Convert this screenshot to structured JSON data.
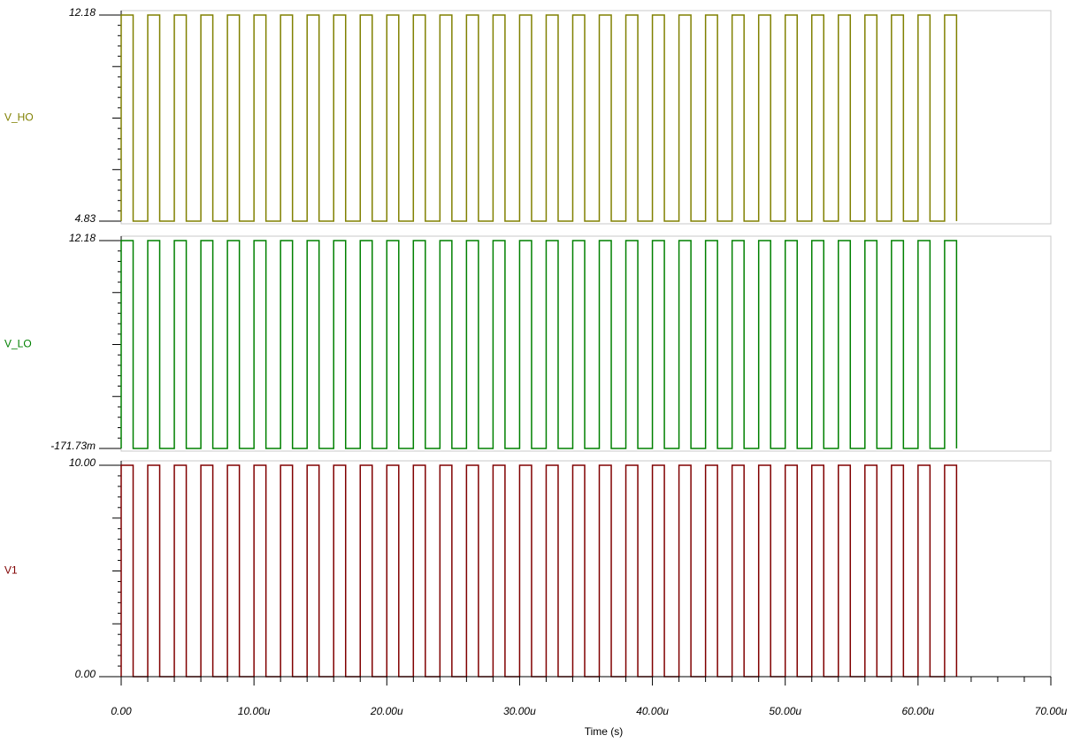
{
  "chart_data": [
    {
      "type": "line",
      "xlim": [
        0,
        7e-05
      ],
      "ylim": [
        4.83,
        12.18
      ],
      "yticks": [
        4.83,
        12.18
      ],
      "x": [
        0,
        0,
        9e-07,
        9e-07,
        2e-06,
        2e-06,
        2.9e-06,
        2.9e-06,
        4e-06,
        4e-06,
        4.9e-06,
        4.9e-06,
        6e-06,
        6e-06,
        6.9e-06,
        6.9e-06,
        8e-06,
        8e-06,
        8.9e-06,
        8.9e-06,
        1e-05,
        1e-05,
        1.09e-05,
        1.09e-05,
        1.2e-05,
        1.2e-05,
        1.29e-05,
        1.29e-05,
        1.4e-05,
        1.4e-05,
        1.49e-05,
        1.49e-05,
        1.6e-05,
        1.6e-05,
        1.69e-05,
        1.69e-05,
        1.8e-05,
        1.8e-05,
        1.89e-05,
        1.89e-05,
        2e-05,
        2e-05,
        2.09e-05,
        2.09e-05,
        2.2e-05,
        2.2e-05,
        2.29e-05,
        2.29e-05,
        2.4e-05,
        2.4e-05,
        2.49e-05,
        2.49e-05,
        2.6e-05,
        2.6e-05,
        2.69e-05,
        2.69e-05,
        2.8e-05,
        2.8e-05,
        2.89e-05,
        2.89e-05,
        3e-05,
        3e-05,
        3.09e-05,
        3.09e-05,
        3.2e-05,
        3.2e-05,
        3.29e-05,
        3.29e-05,
        3.4e-05,
        3.4e-05,
        3.49e-05,
        3.49e-05,
        3.6e-05,
        3.6e-05,
        3.69e-05,
        3.69e-05,
        3.8e-05,
        3.8e-05,
        3.89e-05,
        3.89e-05,
        4e-05,
        4e-05,
        4.09e-05,
        4.09e-05,
        4.2e-05,
        4.2e-05,
        4.29e-05,
        4.29e-05,
        4.4e-05,
        4.4e-05,
        4.49e-05,
        4.49e-05,
        4.6e-05,
        4.6e-05,
        4.69e-05,
        4.69e-05,
        4.8e-05,
        4.8e-05,
        4.89e-05,
        4.89e-05,
        5e-05,
        5e-05,
        5.09e-05,
        5.09e-05,
        5.2e-05,
        5.2e-05,
        5.29e-05,
        5.29e-05,
        5.4e-05,
        5.4e-05,
        5.49e-05,
        5.49e-05,
        5.6e-05,
        5.6e-05,
        5.69e-05,
        5.69e-05,
        5.8e-05,
        5.8e-05,
        5.89e-05,
        5.89e-05,
        6e-05,
        6e-05,
        6.09e-05,
        6.09e-05,
        6.2e-05,
        6.2e-05,
        6.29e-05,
        6.29e-05
      ],
      "series": [
        {
          "name": "V_HO",
          "color": "#808000",
          "values": [
            4.83,
            12.18,
            12.18,
            4.83,
            4.83,
            12.18,
            12.18,
            4.83,
            4.83,
            12.18,
            12.18,
            4.83,
            4.83,
            12.18,
            12.18,
            4.83,
            4.83,
            12.18,
            12.18,
            4.83,
            4.83,
            12.18,
            12.18,
            4.83,
            4.83,
            12.18,
            12.18,
            4.83,
            4.83,
            12.18,
            12.18,
            4.83,
            4.83,
            12.18,
            12.18,
            4.83,
            4.83,
            12.18,
            12.18,
            4.83,
            4.83,
            12.18,
            12.18,
            4.83,
            4.83,
            12.18,
            12.18,
            4.83,
            4.83,
            12.18,
            12.18,
            4.83,
            4.83,
            12.18,
            12.18,
            4.83,
            4.83,
            12.18,
            12.18,
            4.83,
            4.83,
            12.18,
            12.18,
            4.83,
            4.83,
            12.18,
            12.18,
            4.83,
            4.83,
            12.18,
            12.18,
            4.83,
            4.83,
            12.18,
            12.18,
            4.83,
            4.83,
            12.18,
            12.18,
            4.83,
            4.83,
            12.18,
            12.18,
            4.83,
            4.83,
            12.18,
            12.18,
            4.83,
            4.83,
            12.18,
            12.18,
            4.83,
            4.83,
            12.18,
            12.18,
            4.83,
            4.83,
            12.18,
            12.18,
            4.83,
            4.83,
            12.18,
            12.18,
            4.83,
            4.83,
            12.18,
            12.18,
            4.83,
            4.83,
            12.18,
            12.18,
            4.83,
            4.83,
            12.18,
            12.18,
            4.83,
            4.83,
            12.18,
            12.18,
            4.83,
            4.83,
            12.18,
            12.18,
            4.83,
            4.83,
            12.18,
            12.18,
            4.83
          ]
        }
      ]
    },
    {
      "type": "line",
      "xlim": [
        0,
        7e-05
      ],
      "ylim": [
        -0.17173,
        12.18
      ],
      "yticks": [
        {
          "value": -0.17173,
          "label": "-171.73m"
        },
        12.18
      ],
      "x": [
        0,
        0,
        9e-07,
        9e-07,
        2e-06,
        2e-06,
        2.9e-06,
        2.9e-06,
        4e-06,
        4e-06,
        4.9e-06,
        4.9e-06,
        6e-06,
        6e-06,
        6.9e-06,
        6.9e-06,
        8e-06,
        8e-06,
        8.9e-06,
        8.9e-06,
        1e-05,
        1e-05,
        1.09e-05,
        1.09e-05,
        1.2e-05,
        1.2e-05,
        1.29e-05,
        1.29e-05,
        1.4e-05,
        1.4e-05,
        1.49e-05,
        1.49e-05,
        1.6e-05,
        1.6e-05,
        1.69e-05,
        1.69e-05,
        1.8e-05,
        1.8e-05,
        1.89e-05,
        1.89e-05,
        2e-05,
        2e-05,
        2.09e-05,
        2.09e-05,
        2.2e-05,
        2.2e-05,
        2.29e-05,
        2.29e-05,
        2.4e-05,
        2.4e-05,
        2.49e-05,
        2.49e-05,
        2.6e-05,
        2.6e-05,
        2.69e-05,
        2.69e-05,
        2.8e-05,
        2.8e-05,
        2.89e-05,
        2.89e-05,
        3e-05,
        3e-05,
        3.09e-05,
        3.09e-05,
        3.2e-05,
        3.2e-05,
        3.29e-05,
        3.29e-05,
        3.4e-05,
        3.4e-05,
        3.49e-05,
        3.49e-05,
        3.6e-05,
        3.6e-05,
        3.69e-05,
        3.69e-05,
        3.8e-05,
        3.8e-05,
        3.89e-05,
        3.89e-05,
        4e-05,
        4e-05,
        4.09e-05,
        4.09e-05,
        4.2e-05,
        4.2e-05,
        4.29e-05,
        4.29e-05,
        4.4e-05,
        4.4e-05,
        4.49e-05,
        4.49e-05,
        4.6e-05,
        4.6e-05,
        4.69e-05,
        4.69e-05,
        4.8e-05,
        4.8e-05,
        4.89e-05,
        4.89e-05,
        5e-05,
        5e-05,
        5.09e-05,
        5.09e-05,
        5.2e-05,
        5.2e-05,
        5.29e-05,
        5.29e-05,
        5.4e-05,
        5.4e-05,
        5.49e-05,
        5.49e-05,
        5.6e-05,
        5.6e-05,
        5.69e-05,
        5.69e-05,
        5.8e-05,
        5.8e-05,
        5.89e-05,
        5.89e-05,
        6e-05,
        6e-05,
        6.09e-05,
        6.09e-05,
        6.2e-05,
        6.2e-05,
        6.29e-05,
        6.29e-05
      ],
      "series": [
        {
          "name": "V_LO",
          "color": "#008000",
          "values": [
            -0.17173,
            12.18,
            12.18,
            -0.17173,
            -0.17173,
            12.18,
            12.18,
            -0.17173,
            -0.17173,
            12.18,
            12.18,
            -0.17173,
            -0.17173,
            12.18,
            12.18,
            -0.17173,
            -0.17173,
            12.18,
            12.18,
            -0.17173,
            -0.17173,
            12.18,
            12.18,
            -0.17173,
            -0.17173,
            12.18,
            12.18,
            -0.17173,
            -0.17173,
            12.18,
            12.18,
            -0.17173,
            -0.17173,
            12.18,
            12.18,
            -0.17173,
            -0.17173,
            12.18,
            12.18,
            -0.17173,
            -0.17173,
            12.18,
            12.18,
            -0.17173,
            -0.17173,
            12.18,
            12.18,
            -0.17173,
            -0.17173,
            12.18,
            12.18,
            -0.17173,
            -0.17173,
            12.18,
            12.18,
            -0.17173,
            -0.17173,
            12.18,
            12.18,
            -0.17173,
            -0.17173,
            12.18,
            12.18,
            -0.17173,
            -0.17173,
            12.18,
            12.18,
            -0.17173,
            -0.17173,
            12.18,
            12.18,
            -0.17173,
            -0.17173,
            12.18,
            12.18,
            -0.17173,
            -0.17173,
            12.18,
            12.18,
            -0.17173,
            -0.17173,
            12.18,
            12.18,
            -0.17173,
            -0.17173,
            12.18,
            12.18,
            -0.17173,
            -0.17173,
            12.18,
            12.18,
            -0.17173,
            -0.17173,
            12.18,
            12.18,
            -0.17173,
            -0.17173,
            12.18,
            12.18,
            -0.17173,
            -0.17173,
            12.18,
            12.18,
            -0.17173,
            -0.17173,
            12.18,
            12.18,
            -0.17173,
            -0.17173,
            12.18,
            12.18,
            -0.17173,
            -0.17173,
            12.18,
            12.18,
            -0.17173,
            -0.17173,
            12.18,
            12.18,
            -0.17173,
            -0.17173,
            12.18,
            12.18,
            -0.17173,
            -0.17173,
            12.18,
            12.18,
            -0.17173
          ]
        }
      ]
    },
    {
      "type": "line",
      "xlim": [
        0,
        7e-05
      ],
      "ylim": [
        0,
        10
      ],
      "yticks": [
        {
          "value": 0,
          "label": "0.00"
        },
        {
          "value": 10,
          "label": "10.00"
        }
      ],
      "xlabel": "Time (s)",
      "xticks": [
        {
          "value": 0,
          "label": "0.00"
        },
        {
          "value": 1e-05,
          "label": "10.00u"
        },
        {
          "value": 2e-05,
          "label": "20.00u"
        },
        {
          "value": 3e-05,
          "label": "30.00u"
        },
        {
          "value": 4e-05,
          "label": "40.00u"
        },
        {
          "value": 5e-05,
          "label": "50.00u"
        },
        {
          "value": 6e-05,
          "label": "60.00u"
        },
        {
          "value": 7e-05,
          "label": "70.00u"
        }
      ],
      "x": [
        0,
        0,
        9e-07,
        9e-07,
        2e-06,
        2e-06,
        2.9e-06,
        2.9e-06,
        4e-06,
        4e-06,
        4.9e-06,
        4.9e-06,
        6e-06,
        6e-06,
        6.9e-06,
        6.9e-06,
        8e-06,
        8e-06,
        8.9e-06,
        8.9e-06,
        1e-05,
        1e-05,
        1.09e-05,
        1.09e-05,
        1.2e-05,
        1.2e-05,
        1.29e-05,
        1.29e-05,
        1.4e-05,
        1.4e-05,
        1.49e-05,
        1.49e-05,
        1.6e-05,
        1.6e-05,
        1.69e-05,
        1.69e-05,
        1.8e-05,
        1.8e-05,
        1.89e-05,
        1.89e-05,
        2e-05,
        2e-05,
        2.09e-05,
        2.09e-05,
        2.2e-05,
        2.2e-05,
        2.29e-05,
        2.29e-05,
        2.4e-05,
        2.4e-05,
        2.49e-05,
        2.49e-05,
        2.6e-05,
        2.6e-05,
        2.69e-05,
        2.69e-05,
        2.8e-05,
        2.8e-05,
        2.89e-05,
        2.89e-05,
        3e-05,
        3e-05,
        3.09e-05,
        3.09e-05,
        3.2e-05,
        3.2e-05,
        3.29e-05,
        3.29e-05,
        3.4e-05,
        3.4e-05,
        3.49e-05,
        3.49e-05,
        3.6e-05,
        3.6e-05,
        3.69e-05,
        3.69e-05,
        3.8e-05,
        3.8e-05,
        3.89e-05,
        3.89e-05,
        4e-05,
        4e-05,
        4.09e-05,
        4.09e-05,
        4.2e-05,
        4.2e-05,
        4.29e-05,
        4.29e-05,
        4.4e-05,
        4.4e-05,
        4.49e-05,
        4.49e-05,
        4.6e-05,
        4.6e-05,
        4.69e-05,
        4.69e-05,
        4.8e-05,
        4.8e-05,
        4.89e-05,
        4.89e-05,
        5e-05,
        5e-05,
        5.09e-05,
        5.09e-05,
        5.2e-05,
        5.2e-05,
        5.29e-05,
        5.29e-05,
        5.4e-05,
        5.4e-05,
        5.49e-05,
        5.49e-05,
        5.6e-05,
        5.6e-05,
        5.69e-05,
        5.69e-05,
        5.8e-05,
        5.8e-05,
        5.89e-05,
        5.89e-05,
        6e-05,
        6e-05,
        6.09e-05,
        6.09e-05,
        6.2e-05,
        6.2e-05,
        6.29e-05,
        6.29e-05
      ],
      "series": [
        {
          "name": "V1",
          "color": "#800000",
          "values": [
            0,
            10,
            10,
            0,
            0,
            10,
            10,
            0,
            0,
            10,
            10,
            0,
            0,
            10,
            10,
            0,
            0,
            10,
            10,
            0,
            0,
            10,
            10,
            0,
            0,
            10,
            10,
            0,
            0,
            10,
            10,
            0,
            0,
            10,
            10,
            0,
            0,
            10,
            10,
            0,
            0,
            10,
            10,
            0,
            0,
            10,
            10,
            0,
            0,
            10,
            10,
            0,
            0,
            10,
            10,
            0,
            0,
            10,
            10,
            0,
            0,
            10,
            10,
            0,
            0,
            10,
            10,
            0,
            0,
            10,
            10,
            0,
            0,
            10,
            10,
            0,
            0,
            10,
            10,
            0,
            0,
            10,
            10,
            0,
            0,
            10,
            10,
            0,
            0,
            10,
            10,
            0,
            0,
            10,
            10,
            0,
            0,
            10,
            10,
            0,
            0,
            10,
            10,
            0,
            0,
            10,
            10,
            0,
            0,
            10,
            10,
            0,
            0,
            10,
            10,
            0,
            0,
            10,
            10,
            0,
            0,
            10,
            10,
            0,
            0,
            10,
            10,
            0
          ]
        }
      ]
    }
  ]
}
